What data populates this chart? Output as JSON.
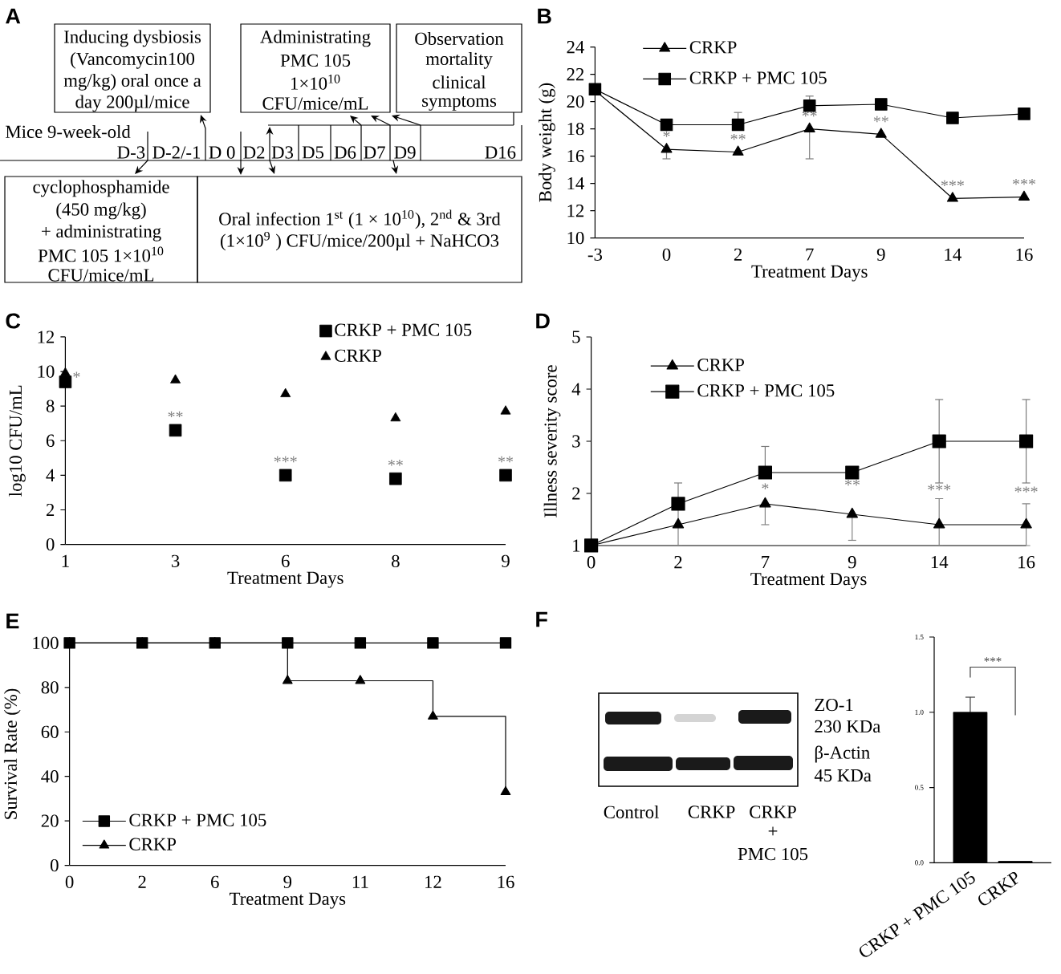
{
  "chart_data": [
    {
      "type": "other",
      "title": "A",
      "annotations": [
        "Inducing dysbiosis",
        "(Vancomycin100",
        "mg/kg) oral once a",
        "day 200µl/mice",
        "Administrating",
        "PMC 105",
        "1×10$^{10}$",
        "CFU/mice/mL",
        "Observation",
        "mortality",
        "clinical",
        "symptoms",
        "Mice 9-week-old",
        "D-3",
        "D-2/-1",
        "D 0",
        "D2",
        "D3",
        "D5",
        "D6",
        "D7",
        "D9",
        "D16",
        "cyclophosphamide",
        "(450 mg/kg)",
        "+ administrating",
        "PMC 105 1×10$^{10}$",
        "CFU/mice/mL",
        "Oral infection 1$^{st}$ (1 × 10$^{10}$), 2$^{nd}$ & 3rd",
        "(1×10$^{9}$ ) CFU/mice/200µl + NaHCO3"
      ]
    },
    {
      "type": "line",
      "title": "B",
      "xlabel": "Treatment Days",
      "ylabel": "Body weight (g)",
      "categories": [
        "-3",
        "0",
        "2",
        "7",
        "9",
        "14",
        "16"
      ],
      "ylim": [
        10,
        24
      ],
      "yticks": [
        10,
        12,
        14,
        16,
        18,
        20,
        22,
        24
      ],
      "legend": "top left",
      "line_style": "solid",
      "series": [
        {
          "name": "CRKP",
          "color": "#000000",
          "marker": "triangle",
          "values": [
            20.8,
            16.5,
            16.3,
            18.0,
            17.6,
            12.9,
            13.0
          ],
          "errors": [
            null,
            [
              15.8,
              16.5
            ],
            null,
            [
              15.8,
              18.0
            ],
            null,
            null,
            null
          ]
        },
        {
          "name": "CRKP + PMC 105",
          "color": "#000000",
          "marker": "square",
          "values": [
            20.9,
            18.3,
            18.3,
            19.7,
            19.8,
            18.8,
            19.1
          ],
          "errors": [
            null,
            null,
            [
              18.3,
              19.2
            ],
            [
              19.7,
              20.4
            ],
            null,
            null,
            null
          ]
        }
      ],
      "annotations": [
        {
          "text": "*",
          "x": "0",
          "y": 16.5
        },
        {
          "text": "**",
          "x": "2",
          "y": 16.3
        },
        {
          "text": "**",
          "x": "7",
          "y": 18.0
        },
        {
          "text": "**",
          "x": "9",
          "y": 17.6
        },
        {
          "text": "***",
          "x": "14",
          "y": 12.9
        },
        {
          "text": "***",
          "x": "16",
          "y": 13.0
        }
      ]
    },
    {
      "type": "scatter",
      "title": "C",
      "xlabel": "Treatment Days",
      "ylabel": "log10 CFU/mL",
      "categories": [
        "1",
        "3",
        "6",
        "8",
        "9"
      ],
      "ylim": [
        0,
        12
      ],
      "yticks": [
        0,
        2,
        4,
        6,
        8,
        10,
        12
      ],
      "legend": "top right",
      "series": [
        {
          "name": "CRKP + PMC 105",
          "color": "#000000",
          "marker": "square",
          "values": [
            9.4,
            6.6,
            4.0,
            3.8,
            4.0
          ]
        },
        {
          "name": "CRKP",
          "color": "#000000",
          "marker": "triangle",
          "values": [
            9.9,
            9.5,
            8.7,
            7.3,
            7.7
          ]
        }
      ],
      "annotations": [
        {
          "text": "*",
          "x": "1",
          "y": 9.4
        },
        {
          "text": "**",
          "x": "3",
          "y": 6.6
        },
        {
          "text": "***",
          "x": "6",
          "y": 4.0
        },
        {
          "text": "**",
          "x": "8",
          "y": 3.8
        },
        {
          "text": "**",
          "x": "9",
          "y": 4.0
        }
      ]
    },
    {
      "type": "line",
      "title": "D",
      "xlabel": "Treatment Days",
      "ylabel": "Illness severity score",
      "categories": [
        "0",
        "2",
        "7",
        "9",
        "14",
        "16"
      ],
      "ylim": [
        1,
        5
      ],
      "yticks": [
        1,
        2,
        3,
        4,
        5
      ],
      "legend": "top left",
      "line_style": "solid",
      "series": [
        {
          "name": "CRKP + PMC 105",
          "color": "#000000",
          "marker": "square",
          "values": [
            1.0,
            1.8,
            2.4,
            2.4,
            3.0,
            3.0
          ],
          "errors": [
            null,
            [
              1.8,
              2.2
            ],
            [
              2.4,
              2.9
            ],
            null,
            0.8,
            0.8
          ]
        },
        {
          "name": "CRKP",
          "color": "#000000",
          "marker": "triangle",
          "values": [
            1.0,
            1.4,
            1.8,
            1.6,
            1.4,
            1.4
          ],
          "errors": [
            null,
            0.4,
            [
              1.4,
              1.8
            ],
            [
              1.1,
              1.6
            ],
            [
              1.0,
              1.9
            ],
            0.4
          ]
        }
      ],
      "annotations": [
        "*",
        "**",
        "***",
        "***"
      ]
    },
    {
      "type": "step",
      "title": "E",
      "xlabel": "Treatment Days",
      "ylabel": "Survival Rate (%)",
      "categories": [
        "0",
        "2",
        "6",
        "9",
        "11",
        "12",
        "16"
      ],
      "ylim": [
        0,
        100
      ],
      "yticks": [
        0,
        20,
        40,
        60,
        80,
        100
      ],
      "legend": "bottom left",
      "line_style": "solid",
      "series": [
        {
          "name": "CRKP + PMC 105",
          "color": "#000000",
          "marker": "square",
          "values": [
            100,
            100,
            100,
            100,
            100,
            100,
            100
          ]
        },
        {
          "name": "CRKP",
          "color": "#000000",
          "marker": "triangle",
          "values": [
            100,
            100,
            100,
            83,
            83,
            67,
            33
          ]
        }
      ]
    },
    {
      "type": "other",
      "title": "F",
      "annotations": [
        "ZO-1",
        "230 KDa",
        "β-Actin",
        "45 KDa",
        "Control",
        "CRKP",
        "CRKP",
        "+",
        "PMC 105"
      ]
    },
    {
      "type": "bar",
      "categories": [
        "CRKP + PMC 105",
        "CRKP"
      ],
      "values": [
        1.0,
        0.01
      ],
      "errors": [
        0.1,
        null
      ],
      "color": "#000000",
      "ylim": [
        0,
        1.5
      ],
      "yticks": [
        {
          "value": 0,
          "label": "0.0"
        },
        {
          "value": 0.5,
          "label": "0.5"
        },
        {
          "value": 1,
          "label": "1.0"
        },
        {
          "value": 1.5,
          "label": "1.5"
        }
      ],
      "annotations": [
        "***"
      ]
    }
  ]
}
